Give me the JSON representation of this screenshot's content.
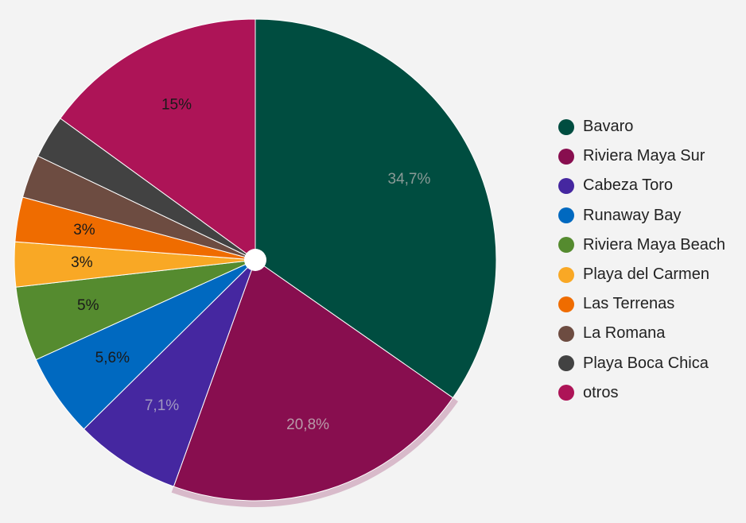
{
  "chart_data": {
    "type": "pie",
    "title": "",
    "start_angle_deg": 0,
    "direction": "clockwise",
    "highlighted_slice": "Riviera Maya Sur",
    "legend_position": "right",
    "slices": [
      {
        "name": "Bavaro",
        "value": 34.7,
        "label": "34,7%",
        "color": "#004d40",
        "label_color": "#8a9a96"
      },
      {
        "name": "Riviera Maya Sur",
        "value": 20.8,
        "label": "20,8%",
        "color": "#880e4f",
        "label_color": "#b89aa8"
      },
      {
        "name": "Cabeza Toro",
        "value": 7.1,
        "label": "7,1%",
        "color": "#4527a0",
        "label_color": "#a098c0"
      },
      {
        "name": "Runaway Bay",
        "value": 5.6,
        "label": "5,6%",
        "color": "#0069c0",
        "label_color": "#1a1a1a"
      },
      {
        "name": "Riviera Maya Beach",
        "value": 5,
        "label": "5%",
        "color": "#558b2f",
        "label_color": "#1a1a1a"
      },
      {
        "name": "Playa del Carmen",
        "value": 3,
        "label": "3%",
        "color": "#f9a825",
        "label_color": "#1a1a1a"
      },
      {
        "name": "Las Terrenas",
        "value": 3,
        "label": "3%",
        "color": "#ef6c00",
        "label_color": "#1a1a1a"
      },
      {
        "name": "La Romana",
        "value": 2.9,
        "label": "",
        "color": "#6d4c41",
        "label_color": "#1a1a1a"
      },
      {
        "name": "Playa Boca Chica",
        "value": 2.9,
        "label": "",
        "color": "#424242",
        "label_color": "#1a1a1a"
      },
      {
        "name": "otros",
        "value": 15,
        "label": "15%",
        "color": "#ad1457",
        "label_color": "#1a1a1a"
      }
    ]
  },
  "legend": {
    "items": [
      {
        "label": "Bavaro",
        "color": "#004d40"
      },
      {
        "label": "Riviera Maya Sur",
        "color": "#880e4f"
      },
      {
        "label": "Cabeza Toro",
        "color": "#4527a0"
      },
      {
        "label": "Runaway Bay",
        "color": "#0069c0"
      },
      {
        "label": "Riviera Maya Beach",
        "color": "#558b2f"
      },
      {
        "label": "Playa del Carmen",
        "color": "#f9a825"
      },
      {
        "label": "Las Terrenas",
        "color": "#ef6c00"
      },
      {
        "label": "La Romana",
        "color": "#6d4c41"
      },
      {
        "label": "Playa Boca Chica",
        "color": "#424242"
      },
      {
        "label": "otros",
        "color": "#ad1457"
      }
    ]
  }
}
